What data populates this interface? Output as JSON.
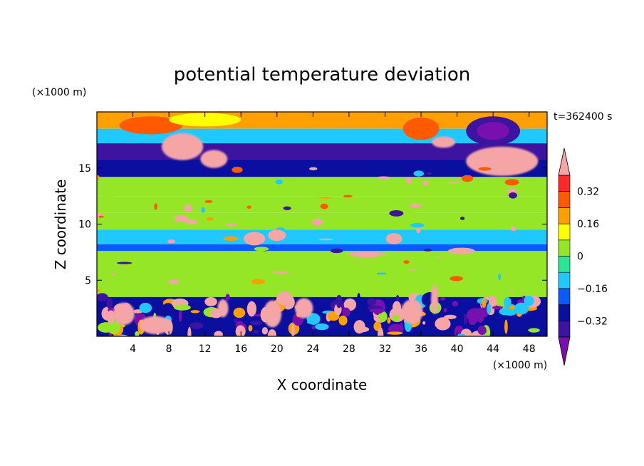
{
  "chart_data": {
    "type": "heatmap",
    "title": "potential temperature deviation",
    "xlabel": "X coordinate",
    "ylabel": "Z coordinate",
    "x_unit_label": "(×1000 m)",
    "y_unit_label": "(×1000 m)",
    "time_label": "t=362400 s",
    "xlim": [
      0,
      50
    ],
    "ylim": [
      0,
      20
    ],
    "x_ticks": [
      4,
      8,
      12,
      16,
      20,
      24,
      28,
      32,
      36,
      40,
      44,
      48
    ],
    "x_tick_labels": [
      "4",
      "8",
      "12",
      "16",
      "20",
      "24",
      "28",
      "32",
      "36",
      "40",
      "44",
      "48"
    ],
    "y_ticks": [
      5,
      10,
      15
    ],
    "y_tick_labels": [
      "5",
      "10",
      "15"
    ],
    "colorbar": {
      "levels": [
        -0.4,
        -0.32,
        -0.24,
        -0.16,
        -0.08,
        0,
        0.08,
        0.16,
        0.24,
        0.32,
        0.4
      ],
      "tick_values": [
        0.32,
        0.16,
        0,
        -0.16,
        -0.32
      ],
      "tick_labels": [
        "0.32",
        "0.16",
        "0",
        "−0.16",
        "−0.32"
      ],
      "colors": [
        "#7a0fb0",
        "#3c14a0",
        "#0a0fa0",
        "#0a5aff",
        "#1fc8ff",
        "#28e896",
        "#96e628",
        "#ffff00",
        "#ffa000",
        "#ff5a00",
        "#ff2828",
        "#f5a5a5"
      ],
      "extend": "both"
    },
    "layers": [
      {
        "z": [
          18.5,
          20.0
        ],
        "label": "upper warm band",
        "value": 0.2
      },
      {
        "z": [
          17.2,
          18.5
        ],
        "label": "upper cyan band",
        "value": -0.1
      },
      {
        "z": [
          15.8,
          17.2
        ],
        "label": "cold band",
        "value": -0.36
      },
      {
        "z": [
          14.2,
          15.8
        ],
        "label": "mixed band",
        "value": -0.28
      },
      {
        "z": [
          12.5,
          14.2
        ],
        "label": "green band",
        "value": 0.02
      },
      {
        "z": [
          11.0,
          12.5
        ],
        "label": "light green band",
        "value": 0.06
      },
      {
        "z": [
          9.5,
          11.0
        ],
        "label": "green band",
        "value": 0.02
      },
      {
        "z": [
          8.2,
          9.5
        ],
        "label": "cyan band",
        "value": -0.12
      },
      {
        "z": [
          7.6,
          8.2
        ],
        "label": "blue band",
        "value": -0.2
      },
      {
        "z": [
          3.5,
          7.6
        ],
        "label": "light green band",
        "value": 0.05
      },
      {
        "z": [
          0.0,
          3.5
        ],
        "label": "turbulent boundary layer",
        "value": -0.3
      }
    ]
  }
}
